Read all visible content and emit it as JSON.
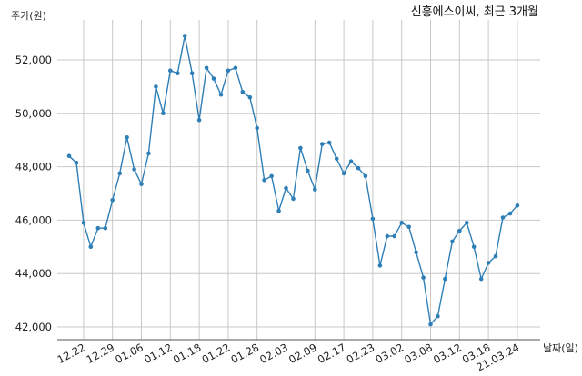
{
  "chart_data": {
    "type": "line",
    "title": "신흥에스이씨, 최근 3개월",
    "xlabel": "날짜(일)",
    "ylabel": "주가(원)",
    "ylim": [
      41500,
      53500
    ],
    "yticks": [
      42000,
      44000,
      46000,
      48000,
      50000,
      52000
    ],
    "ytick_labels": [
      "42,000",
      "44,000",
      "46,000",
      "48,000",
      "50,000",
      "52,000"
    ],
    "xtick_labels": [
      "12.22",
      "12.29",
      "01.06",
      "01.12",
      "01.18",
      "01.22",
      "01.28",
      "02.03",
      "02.09",
      "02.17",
      "02.23",
      "03.02",
      "03.08",
      "03.12",
      "03.18",
      "21.03.24"
    ],
    "xtick_index": [
      2,
      6,
      10,
      14,
      18,
      22,
      26,
      30,
      34,
      38,
      42,
      46,
      50,
      54,
      58,
      62
    ],
    "grid": true,
    "color": "#2e7fb8",
    "series": [
      {
        "name": "",
        "values": [
          48400,
          48150,
          45900,
          45000,
          45700,
          45700,
          46750,
          47750,
          49100,
          47900,
          47350,
          48500,
          51000,
          50000,
          51600,
          51500,
          52900,
          51500,
          49750,
          51700,
          51300,
          50700,
          51600,
          51700,
          50800,
          50600,
          49450,
          47500,
          47650,
          46350,
          47200,
          46800,
          48700,
          47850,
          47150,
          48850,
          48900,
          48300,
          47750,
          48200,
          47950,
          47650,
          46050,
          44300,
          45400,
          45400,
          45900,
          45750,
          44800,
          43850,
          42100,
          42400,
          43800,
          45200,
          45600,
          45900,
          45000,
          43800,
          44400,
          44650,
          46100,
          46250,
          46550
        ]
      }
    ]
  }
}
